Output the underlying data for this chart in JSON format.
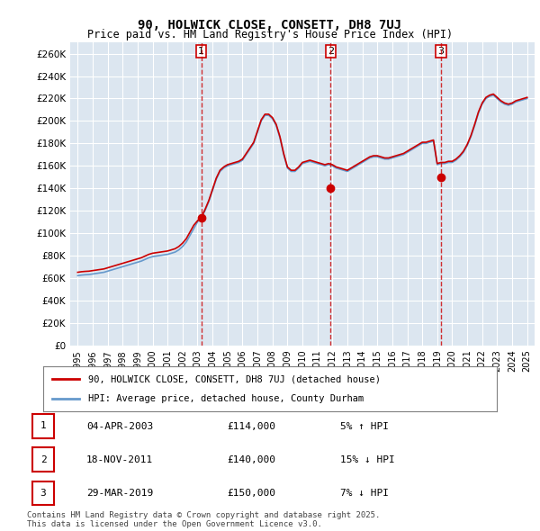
{
  "title1": "90, HOLWICK CLOSE, CONSETT, DH8 7UJ",
  "title2": "Price paid vs. HM Land Registry's House Price Index (HPI)",
  "ylabel": "",
  "background_color": "#dce6f0",
  "plot_bg": "#dce6f0",
  "ylim": [
    0,
    270000
  ],
  "yticks": [
    0,
    20000,
    40000,
    60000,
    80000,
    100000,
    120000,
    140000,
    160000,
    180000,
    200000,
    220000,
    240000,
    260000
  ],
  "ytick_labels": [
    "£0",
    "£20K",
    "£40K",
    "£60K",
    "£80K",
    "£100K",
    "£120K",
    "£140K",
    "£160K",
    "£180K",
    "£200K",
    "£220K",
    "£240K",
    "£260K"
  ],
  "red_line_color": "#cc0000",
  "blue_line_color": "#6699cc",
  "marker_color": "#cc0000",
  "vline_color": "#cc0000",
  "transactions": [
    {
      "num": 1,
      "date_label": "04-APR-2003",
      "price": 114000,
      "hpi_rel": "5% ↑ HPI",
      "year": 2003.25
    },
    {
      "num": 2,
      "date_label": "18-NOV-2011",
      "price": 140000,
      "hpi_rel": "15% ↓ HPI",
      "year": 2011.88
    },
    {
      "num": 3,
      "date_label": "29-MAR-2019",
      "price": 150000,
      "hpi_rel": "7% ↓ HPI",
      "year": 2019.24
    }
  ],
  "legend_line1": "90, HOLWICK CLOSE, CONSETT, DH8 7UJ (detached house)",
  "legend_line2": "HPI: Average price, detached house, County Durham",
  "footnote": "Contains HM Land Registry data © Crown copyright and database right 2025.\nThis data is licensed under the Open Government Licence v3.0.",
  "hpi_data": {
    "years": [
      1995.0,
      1995.25,
      1995.5,
      1995.75,
      1996.0,
      1996.25,
      1996.5,
      1996.75,
      1997.0,
      1997.25,
      1997.5,
      1997.75,
      1998.0,
      1998.25,
      1998.5,
      1998.75,
      1999.0,
      1999.25,
      1999.5,
      1999.75,
      2000.0,
      2000.25,
      2000.5,
      2000.75,
      2001.0,
      2001.25,
      2001.5,
      2001.75,
      2002.0,
      2002.25,
      2002.5,
      2002.75,
      2003.0,
      2003.25,
      2003.5,
      2003.75,
      2004.0,
      2004.25,
      2004.5,
      2004.75,
      2005.0,
      2005.25,
      2005.5,
      2005.75,
      2006.0,
      2006.25,
      2006.5,
      2006.75,
      2007.0,
      2007.25,
      2007.5,
      2007.75,
      2008.0,
      2008.25,
      2008.5,
      2008.75,
      2009.0,
      2009.25,
      2009.5,
      2009.75,
      2010.0,
      2010.25,
      2010.5,
      2010.75,
      2011.0,
      2011.25,
      2011.5,
      2011.75,
      2012.0,
      2012.25,
      2012.5,
      2012.75,
      2013.0,
      2013.25,
      2013.5,
      2013.75,
      2014.0,
      2014.25,
      2014.5,
      2014.75,
      2015.0,
      2015.25,
      2015.5,
      2015.75,
      2016.0,
      2016.25,
      2016.5,
      2016.75,
      2017.0,
      2017.25,
      2017.5,
      2017.75,
      2018.0,
      2018.25,
      2018.5,
      2018.75,
      2019.0,
      2019.25,
      2019.5,
      2019.75,
      2020.0,
      2020.25,
      2020.5,
      2020.75,
      2021.0,
      2021.25,
      2021.5,
      2021.75,
      2022.0,
      2022.25,
      2022.5,
      2022.75,
      2023.0,
      2023.25,
      2023.5,
      2023.75,
      2024.0,
      2024.25,
      2024.5,
      2024.75,
      2025.0
    ],
    "hpi_values": [
      62000,
      62500,
      62800,
      63000,
      63500,
      64000,
      64500,
      65000,
      66000,
      67000,
      68000,
      69000,
      70000,
      71000,
      72000,
      73000,
      74000,
      75000,
      76500,
      78000,
      79000,
      79500,
      80000,
      80500,
      81000,
      82000,
      83000,
      85000,
      88000,
      92000,
      98000,
      104000,
      110000,
      114000,
      120000,
      128000,
      138000,
      148000,
      155000,
      158000,
      160000,
      161000,
      162000,
      163000,
      165000,
      170000,
      175000,
      180000,
      190000,
      200000,
      205000,
      205000,
      202000,
      196000,
      185000,
      170000,
      158000,
      155000,
      155000,
      158000,
      162000,
      163000,
      164000,
      163000,
      162000,
      161000,
      160000,
      161000,
      160000,
      158000,
      157000,
      156000,
      155000,
      157000,
      159000,
      161000,
      163000,
      165000,
      167000,
      168000,
      168000,
      167000,
      166000,
      166000,
      167000,
      168000,
      169000,
      170000,
      172000,
      174000,
      176000,
      178000,
      180000,
      180000,
      181000,
      182000,
      161000,
      162000,
      162000,
      163000,
      163000,
      165000,
      168000,
      172000,
      178000,
      186000,
      196000,
      207000,
      215000,
      220000,
      222000,
      223000,
      220000,
      217000,
      215000,
      214000,
      215000,
      217000,
      218000,
      219000,
      220000
    ],
    "red_values": [
      65000,
      65500,
      65800,
      66000,
      66500,
      67000,
      67500,
      68000,
      69000,
      70000,
      71000,
      72000,
      73000,
      74000,
      75000,
      76000,
      77000,
      78000,
      79500,
      81000,
      82000,
      82500,
      83000,
      83500,
      84000,
      85000,
      86000,
      88000,
      91000,
      95000,
      101000,
      107000,
      111000,
      114000,
      121000,
      129000,
      139000,
      149000,
      156000,
      159000,
      161000,
      162000,
      163000,
      164000,
      166000,
      171000,
      176000,
      181000,
      191000,
      201000,
      206000,
      206000,
      203000,
      197000,
      186000,
      171000,
      159000,
      156000,
      156000,
      159000,
      163000,
      164000,
      165000,
      164000,
      163000,
      162000,
      161000,
      162000,
      161000,
      159000,
      158000,
      157000,
      156000,
      158000,
      160000,
      162000,
      164000,
      166000,
      168000,
      169000,
      169000,
      168000,
      167000,
      167000,
      168000,
      169000,
      170000,
      171000,
      173000,
      175000,
      177000,
      179000,
      181000,
      181000,
      182000,
      183000,
      162000,
      163000,
      163000,
      164000,
      164000,
      166000,
      169000,
      173000,
      179000,
      187000,
      197000,
      208000,
      216000,
      221000,
      223000,
      224000,
      221000,
      218000,
      216000,
      215000,
      216000,
      218000,
      219000,
      220000,
      221000
    ]
  }
}
